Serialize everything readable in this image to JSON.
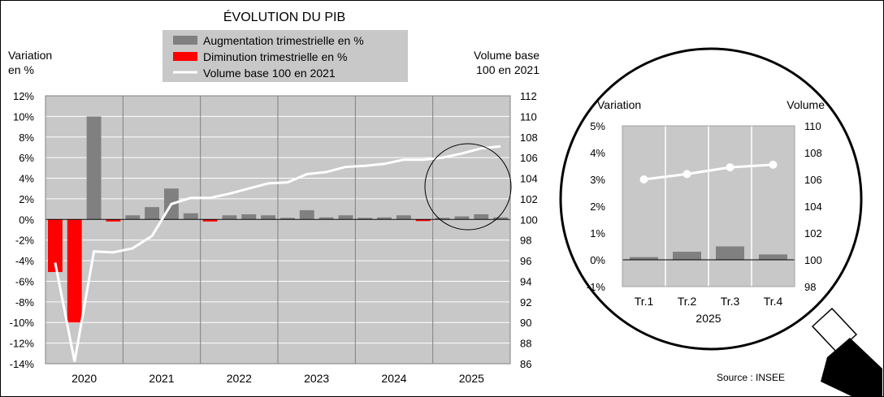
{
  "chart_data": [
    {
      "type": "bar+line",
      "title": "ÉVOLUTION DU PIB",
      "legend": [
        {
          "label": "Augmentation trimestrielle en %",
          "color": "#808080",
          "kind": "bar"
        },
        {
          "label": "Diminution trimestrielle en %",
          "color": "#ff0000",
          "kind": "bar"
        },
        {
          "label": "Volume base 100 en  2021",
          "color": "#ffffff",
          "kind": "line"
        }
      ],
      "left_axis": {
        "label_line1": "Variation",
        "label_line2": "en %",
        "min": -14,
        "max": 12,
        "step": 2,
        "ticks": [
          "12%",
          "10%",
          "8%",
          "6%",
          "4%",
          "2%",
          "0%",
          "-2%",
          "-4%",
          "-6%",
          "-8%",
          "-10%",
          "-12%",
          "-14%"
        ]
      },
      "right_axis": {
        "label_line1": "Volume base",
        "label_line2": "100 en 2021",
        "min": 86,
        "max": 112,
        "step": 2,
        "ticks": [
          "112",
          "110",
          "108",
          "106",
          "104",
          "102",
          "100",
          "98",
          "96",
          "94",
          "92",
          "90",
          "88",
          "86"
        ]
      },
      "years": [
        "2020",
        "2021",
        "2022",
        "2023",
        "2024",
        "2025"
      ],
      "quarter_changes": [
        -5.1,
        -10.0,
        10.0,
        -0.2,
        0.4,
        1.2,
        3.0,
        0.6,
        -0.2,
        0.4,
        0.5,
        0.4,
        0.1,
        0.9,
        0.2,
        0.4,
        0.1,
        0.2,
        0.4,
        -0.1,
        0.1,
        0.3,
        0.5,
        0.2
      ],
      "volume_index": [
        95.8,
        86.2,
        96.9,
        96.8,
        97.2,
        98.4,
        101.5,
        102.1,
        102.1,
        102.5,
        103.0,
        103.5,
        103.6,
        104.4,
        104.6,
        105.1,
        105.2,
        105.4,
        105.8,
        105.8,
        106.0,
        106.4,
        106.9,
        107.1
      ],
      "source": "Source : INSEE"
    },
    {
      "type": "bar+line",
      "title": "2025",
      "left_axis": {
        "label": "Variation",
        "min": -1,
        "max": 5,
        "step": 1,
        "ticks": [
          "5%",
          "4%",
          "3%",
          "2%",
          "1%",
          "0%",
          "-1%"
        ]
      },
      "right_axis": {
        "label": "Volume",
        "min": 98,
        "max": 110,
        "step": 2,
        "ticks": [
          "110",
          "108",
          "106",
          "104",
          "102",
          "100",
          "98"
        ]
      },
      "categories": [
        "Tr.1",
        "Tr.2",
        "Tr.3",
        "Tr.4"
      ],
      "quarter_changes": [
        0.1,
        0.3,
        0.5,
        0.2
      ],
      "volume_index": [
        106.0,
        106.4,
        106.9,
        107.1
      ]
    }
  ]
}
